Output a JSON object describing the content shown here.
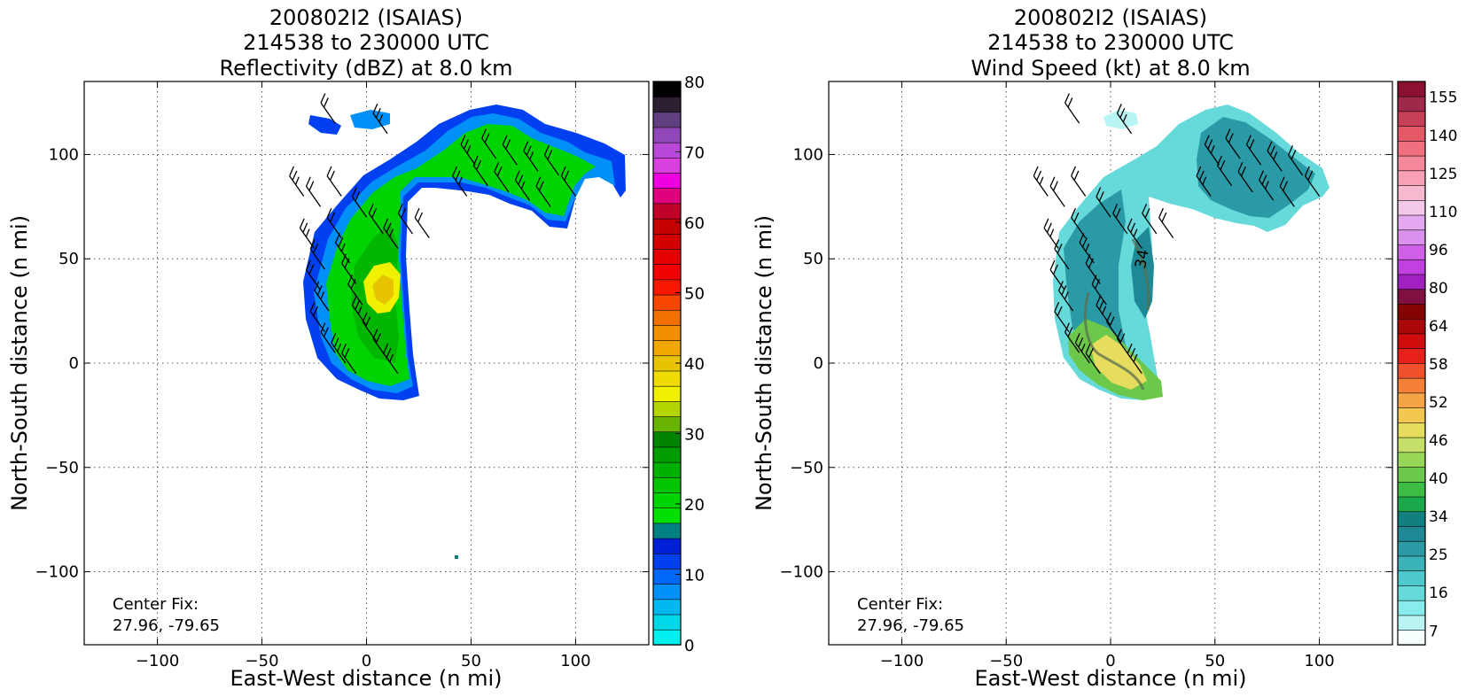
{
  "chart_data": [
    {
      "type": "heatmap",
      "title_lines": [
        "200802I2 (ISAIAS)",
        "214538 to 230000 UTC",
        "Reflectivity (dBZ) at 8.0 km"
      ],
      "xlabel": "East-West distance (n mi)",
      "ylabel": "North-South distance (n mi)",
      "xlim": [
        -135,
        135
      ],
      "ylim": [
        -135,
        135
      ],
      "xticks": [
        -100,
        -50,
        0,
        50,
        100
      ],
      "yticks": [
        -100,
        -50,
        0,
        50,
        100
      ],
      "xtick_labels": [
        "−100",
        "−50",
        "0",
        "50",
        "100"
      ],
      "ytick_labels": [
        "−100",
        "−50",
        "0",
        "50",
        "100"
      ],
      "grid": true,
      "annotation_lines": [
        "Center Fix:",
        "27.96, -79.65"
      ],
      "colorbar": {
        "levels": [
          0,
          2.5,
          5,
          7.5,
          10,
          12.5,
          15,
          17.5,
          20,
          22.5,
          25,
          27.5,
          30,
          32.5,
          35,
          37.5,
          40,
          42.5,
          45,
          47.5,
          50,
          52.5,
          55,
          57.5,
          60,
          62.5,
          65,
          67.5,
          70,
          72.5,
          75,
          77.5,
          80
        ],
        "colors": [
          "#00f0f0",
          "#00d8e8",
          "#00b8f0",
          "#0090f8",
          "#0068f8",
          "#0040f0",
          "#0020d8",
          "#008080",
          "#00e000",
          "#00d400",
          "#00c400",
          "#00b000",
          "#009c00",
          "#008400",
          "#68b400",
          "#b4d400",
          "#f0f000",
          "#f0dc00",
          "#e8c400",
          "#f0a800",
          "#f09000",
          "#f07000",
          "#f84800",
          "#f81800",
          "#f00000",
          "#e40000",
          "#d40000",
          "#c40000",
          "#c00028",
          "#e0007c",
          "#f000e0",
          "#d840e0",
          "#b848d8",
          "#9048b8",
          "#604080",
          "#2c2030",
          "#000000"
        ],
        "tick_values": [
          0,
          10,
          20,
          30,
          40,
          50,
          60,
          70,
          80
        ],
        "tick_labels": [
          "0",
          "10",
          "20",
          "30",
          "40",
          "50",
          "60",
          "70",
          "80"
        ]
      }
    },
    {
      "type": "heatmap",
      "title_lines": [
        "200802I2 (ISAIAS)",
        "214538 to 230000 UTC",
        "Wind Speed (kt) at 8.0 km"
      ],
      "xlabel": "East-West distance (n mi)",
      "ylabel": "North-South distance (n mi)",
      "xlim": [
        -135,
        135
      ],
      "ylim": [
        -135,
        135
      ],
      "xticks": [
        -100,
        -50,
        0,
        50,
        100
      ],
      "yticks": [
        -100,
        -50,
        0,
        50,
        100
      ],
      "xtick_labels": [
        "−100",
        "−50",
        "0",
        "50",
        "100"
      ],
      "ytick_labels": [
        "−100",
        "−50",
        "0",
        "50",
        "100"
      ],
      "grid": true,
      "annotation_lines": [
        "Center Fix:",
        "27.96, -79.65"
      ],
      "contour_label": "34",
      "colorbar": {
        "bin_count": 36,
        "colors": [
          "#f8ffff",
          "#b8f4f4",
          "#88ecec",
          "#66dada",
          "#4ec8cc",
          "#3ab2b8",
          "#2a9aa6",
          "#1e8894",
          "#128080",
          "#1aa84a",
          "#3cbc44",
          "#6cc84a",
          "#98d658",
          "#c4e068",
          "#e6dc5e",
          "#f4c850",
          "#f4a444",
          "#f48038",
          "#f0502c",
          "#e8201c",
          "#d00c0c",
          "#aa0808",
          "#840404",
          "#801040",
          "#a020c0",
          "#c040e0",
          "#d060e8",
          "#dc90ee",
          "#e4a8f0",
          "#f4c8e8",
          "#f8b8d0",
          "#f8a0b4",
          "#f4889a",
          "#f07080",
          "#e45868",
          "#c84058",
          "#a02848",
          "#8c1030"
        ],
        "tick_labels": [
          "7",
          "16",
          "25",
          "34",
          "40",
          "46",
          "52",
          "58",
          "64",
          "80",
          "96",
          "110",
          "125",
          "140",
          "155"
        ]
      }
    }
  ]
}
